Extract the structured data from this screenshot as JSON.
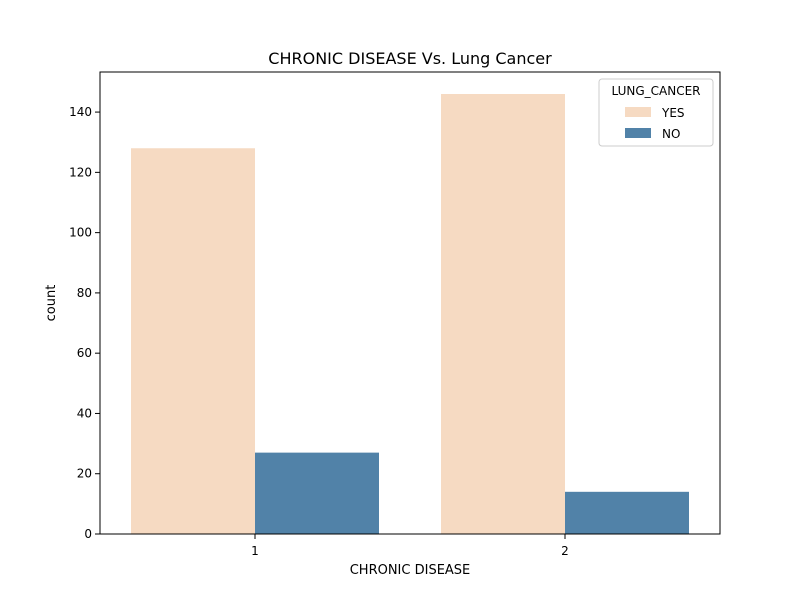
{
  "chart_data": {
    "type": "bar",
    "title": "CHRONIC DISEASE Vs. Lung Cancer",
    "xlabel": "CHRONIC DISEASE",
    "ylabel": "count",
    "categories": [
      "1",
      "2"
    ],
    "series": [
      {
        "name": "YES",
        "values": [
          128,
          146
        ],
        "color": "#f6dac2"
      },
      {
        "name": "NO",
        "values": [
          27,
          14
        ],
        "color": "#5182a8"
      }
    ],
    "ylim": [
      0,
      153.3
    ],
    "yticks": [
      0,
      20,
      40,
      60,
      80,
      100,
      120,
      140
    ],
    "grid": false,
    "legend": {
      "title": "LUNG_CANCER",
      "position": "top-right"
    }
  }
}
